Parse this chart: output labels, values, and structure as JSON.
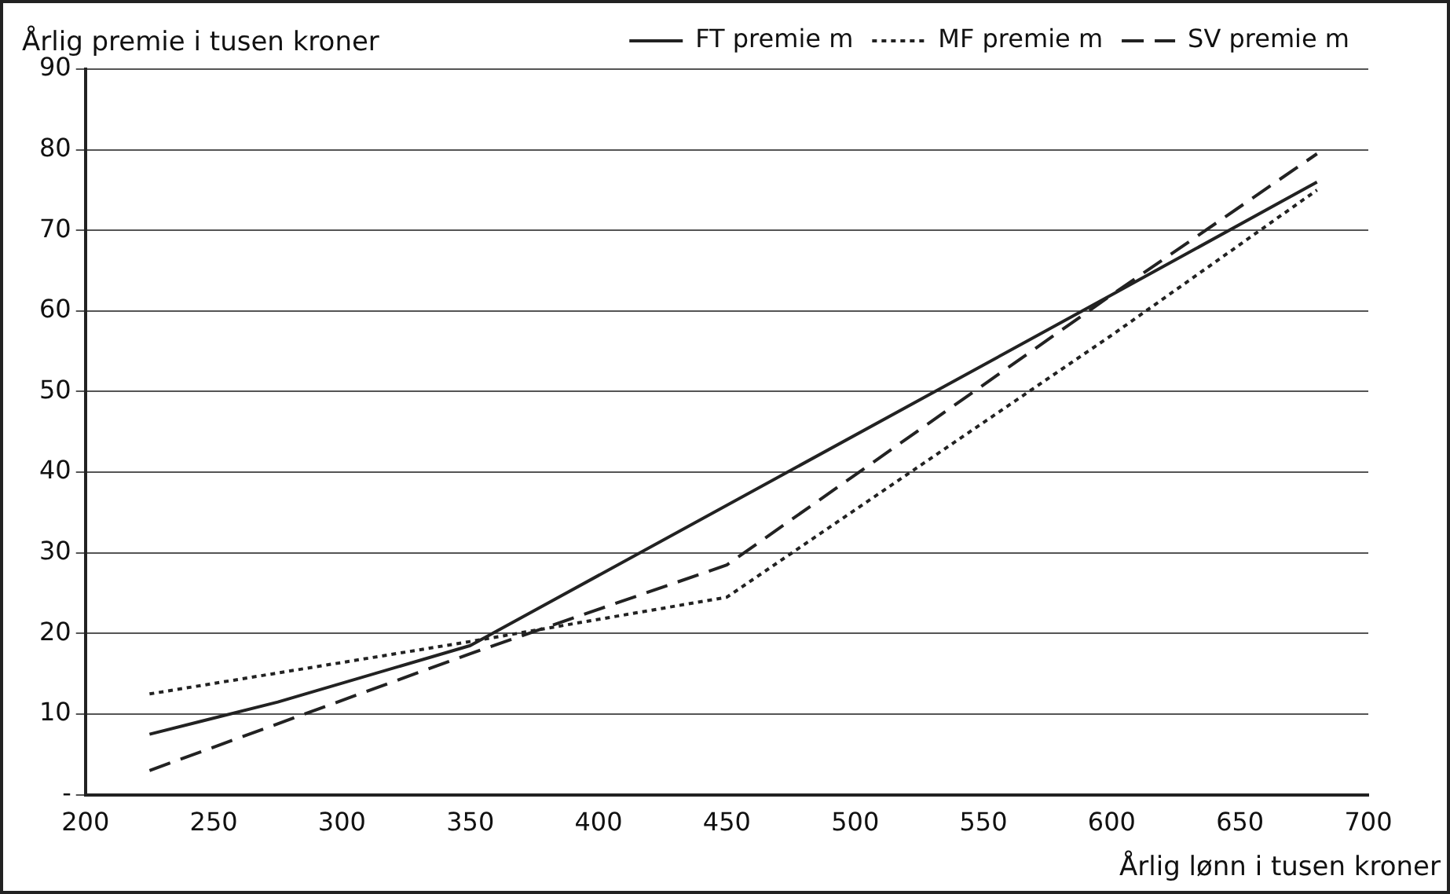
{
  "chart_data": {
    "type": "line",
    "ylabel": "Årlig premie i tusen kroner",
    "xlabel": "Årlig lønn i tusen kroner",
    "xlim": [
      200,
      700
    ],
    "xticks": [
      200,
      250,
      300,
      350,
      400,
      450,
      500,
      550,
      600,
      650,
      700
    ],
    "ylim": [
      0,
      90
    ],
    "yticks": [
      {
        "value": 0,
        "label": "-"
      },
      10,
      20,
      30,
      40,
      50,
      60,
      70,
      80,
      90
    ],
    "grid": "y",
    "legend": "top right",
    "marker": "none",
    "series": [
      {
        "name": "FT premie m",
        "color": "#222222",
        "line_style": "solid",
        "x": [
          225,
          275,
          350,
          600,
          680
        ],
        "values": [
          7.5,
          11.5,
          18.5,
          62,
          76
        ]
      },
      {
        "name": "MF premie m",
        "color": "#222222",
        "line_style": "dotted",
        "x": [
          225,
          350,
          450,
          600,
          680
        ],
        "values": [
          12.5,
          19,
          24.5,
          57,
          75
        ]
      },
      {
        "name": "SV premie m",
        "color": "#222222",
        "line_style": "dashed",
        "x": [
          225,
          350,
          450,
          600,
          680
        ],
        "values": [
          3,
          17.5,
          28.5,
          62,
          79.5
        ]
      }
    ]
  }
}
